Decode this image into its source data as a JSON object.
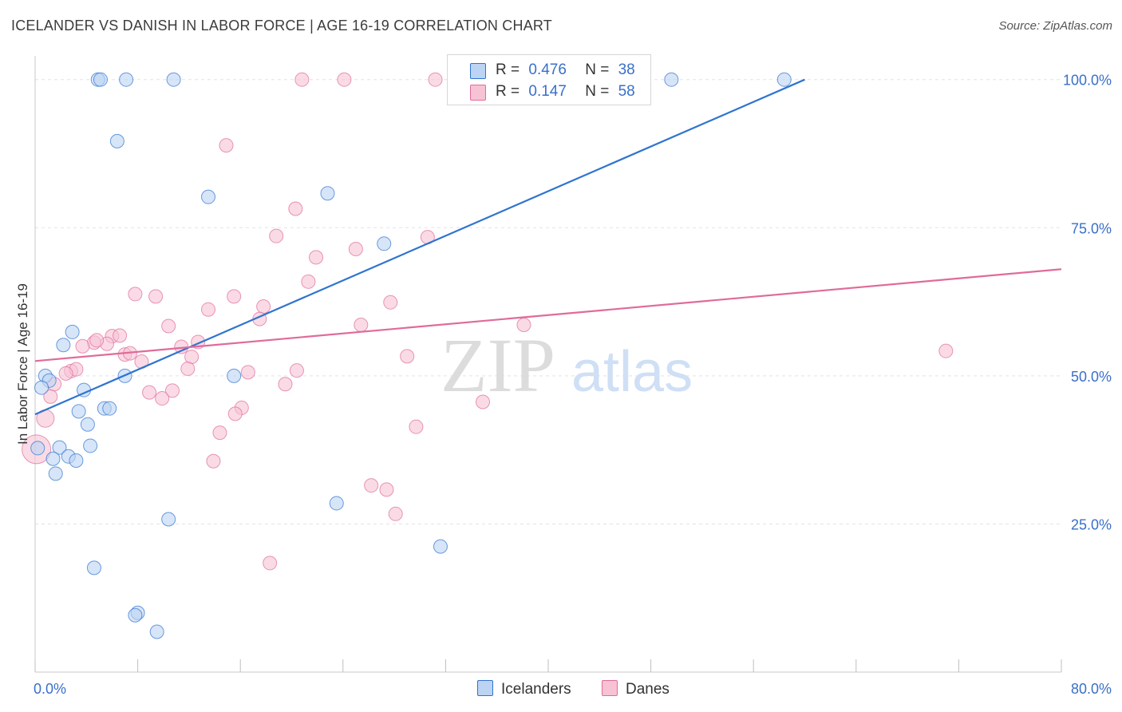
{
  "title": "ICELANDER VS DANISH IN LABOR FORCE | AGE 16-19 CORRELATION CHART",
  "source": "Source: ZipAtlas.com",
  "watermark": {
    "zip": "ZIP",
    "atlas": "atlas"
  },
  "legend": {
    "rows": [
      {
        "r_label": "R =",
        "r_value": "0.476",
        "n_label": "N =",
        "n_value": "38"
      },
      {
        "r_label": "R =",
        "r_value": "0.147",
        "n_label": "N =",
        "n_value": "58"
      }
    ],
    "bottom": [
      "Icelanders",
      "Danes"
    ]
  },
  "colors": {
    "blue": "#2f74d0",
    "pink": "#e06b9a",
    "blue_fill": "#bcd3f3",
    "pink_fill": "#f7c3d4",
    "tick_text": "#3a6fc9"
  },
  "chart_data": {
    "type": "scatter",
    "xlabel": "",
    "ylabel": "In Labor Force | Age 16-19",
    "xlim": [
      0,
      80
    ],
    "ylim": [
      0,
      104
    ],
    "x_tick_labels": [
      "0.0%",
      "80.0%"
    ],
    "y_ticks": [
      25,
      50,
      75,
      100
    ],
    "y_tick_labels": [
      "25.0%",
      "50.0%",
      "75.0%",
      "100.0%"
    ],
    "grid": true,
    "legend_position": "top-center",
    "series": [
      {
        "name": "Icelanders",
        "color": "#2f74d0",
        "trendline": {
          "x": [
            0,
            60
          ],
          "y": [
            43.5,
            100
          ]
        },
        "points": [
          [
            4.9,
            100
          ],
          [
            5.1,
            100
          ],
          [
            7.1,
            100
          ],
          [
            10.8,
            100
          ],
          [
            41.4,
            100
          ],
          [
            44.9,
            100
          ],
          [
            49.6,
            100
          ],
          [
            58.4,
            100
          ],
          [
            6.4,
            89.6
          ],
          [
            13.5,
            80.2
          ],
          [
            22.8,
            80.8
          ],
          [
            27.2,
            72.3
          ],
          [
            2.9,
            57.4
          ],
          [
            2.2,
            55.2
          ],
          [
            0.8,
            50.0
          ],
          [
            1.1,
            49.2
          ],
          [
            0.5,
            48.0
          ],
          [
            3.8,
            47.6
          ],
          [
            7.0,
            50.0
          ],
          [
            15.5,
            50.0
          ],
          [
            3.4,
            44.0
          ],
          [
            5.4,
            44.5
          ],
          [
            5.8,
            44.5
          ],
          [
            4.1,
            41.8
          ],
          [
            0.2,
            37.8
          ],
          [
            1.9,
            37.9
          ],
          [
            2.6,
            36.4
          ],
          [
            4.3,
            38.2
          ],
          [
            1.4,
            36.0
          ],
          [
            3.2,
            35.7
          ],
          [
            1.6,
            33.5
          ],
          [
            10.4,
            25.8
          ],
          [
            23.5,
            28.5
          ],
          [
            31.6,
            21.2
          ],
          [
            4.6,
            17.6
          ],
          [
            8.0,
            10.0
          ],
          [
            7.8,
            9.6
          ],
          [
            9.5,
            6.8
          ]
        ]
      },
      {
        "name": "Danes",
        "color": "#e06b9a",
        "trendline": {
          "x": [
            0,
            80
          ],
          "y": [
            52.5,
            68.0
          ]
        },
        "points": [
          [
            20.8,
            100
          ],
          [
            24.1,
            100
          ],
          [
            31.2,
            100
          ],
          [
            14.9,
            88.9
          ],
          [
            20.3,
            78.2
          ],
          [
            18.8,
            73.6
          ],
          [
            30.6,
            73.4
          ],
          [
            25.0,
            71.4
          ],
          [
            21.9,
            70.0
          ],
          [
            21.3,
            65.9
          ],
          [
            7.8,
            63.8
          ],
          [
            9.4,
            63.4
          ],
          [
            15.5,
            63.4
          ],
          [
            27.7,
            62.4
          ],
          [
            13.5,
            61.2
          ],
          [
            17.8,
            61.7
          ],
          [
            17.5,
            59.6
          ],
          [
            10.4,
            58.4
          ],
          [
            25.4,
            58.6
          ],
          [
            38.1,
            58.6
          ],
          [
            6.0,
            56.7
          ],
          [
            4.6,
            55.6
          ],
          [
            5.6,
            55.4
          ],
          [
            3.7,
            55.0
          ],
          [
            4.8,
            56.0
          ],
          [
            6.6,
            56.8
          ],
          [
            12.7,
            55.7
          ],
          [
            11.4,
            54.9
          ],
          [
            7.0,
            53.6
          ],
          [
            7.4,
            53.8
          ],
          [
            12.2,
            53.2
          ],
          [
            8.3,
            52.4
          ],
          [
            29.0,
            53.3
          ],
          [
            71.0,
            54.2
          ],
          [
            2.8,
            50.8
          ],
          [
            3.2,
            51.1
          ],
          [
            2.4,
            50.4
          ],
          [
            11.9,
            51.2
          ],
          [
            16.6,
            50.6
          ],
          [
            20.4,
            50.9
          ],
          [
            1.5,
            48.6
          ],
          [
            8.9,
            47.2
          ],
          [
            10.7,
            47.5
          ],
          [
            9.9,
            46.2
          ],
          [
            19.5,
            48.6
          ],
          [
            1.2,
            46.5
          ],
          [
            34.9,
            45.6
          ],
          [
            16.1,
            44.6
          ],
          [
            15.6,
            43.6
          ],
          [
            0.8,
            42.8
          ],
          [
            29.7,
            41.4
          ],
          [
            14.4,
            40.4
          ],
          [
            0.1,
            37.6
          ],
          [
            13.9,
            35.6
          ],
          [
            26.2,
            31.5
          ],
          [
            27.4,
            30.8
          ],
          [
            28.1,
            26.7
          ],
          [
            18.3,
            18.4
          ]
        ]
      }
    ]
  }
}
